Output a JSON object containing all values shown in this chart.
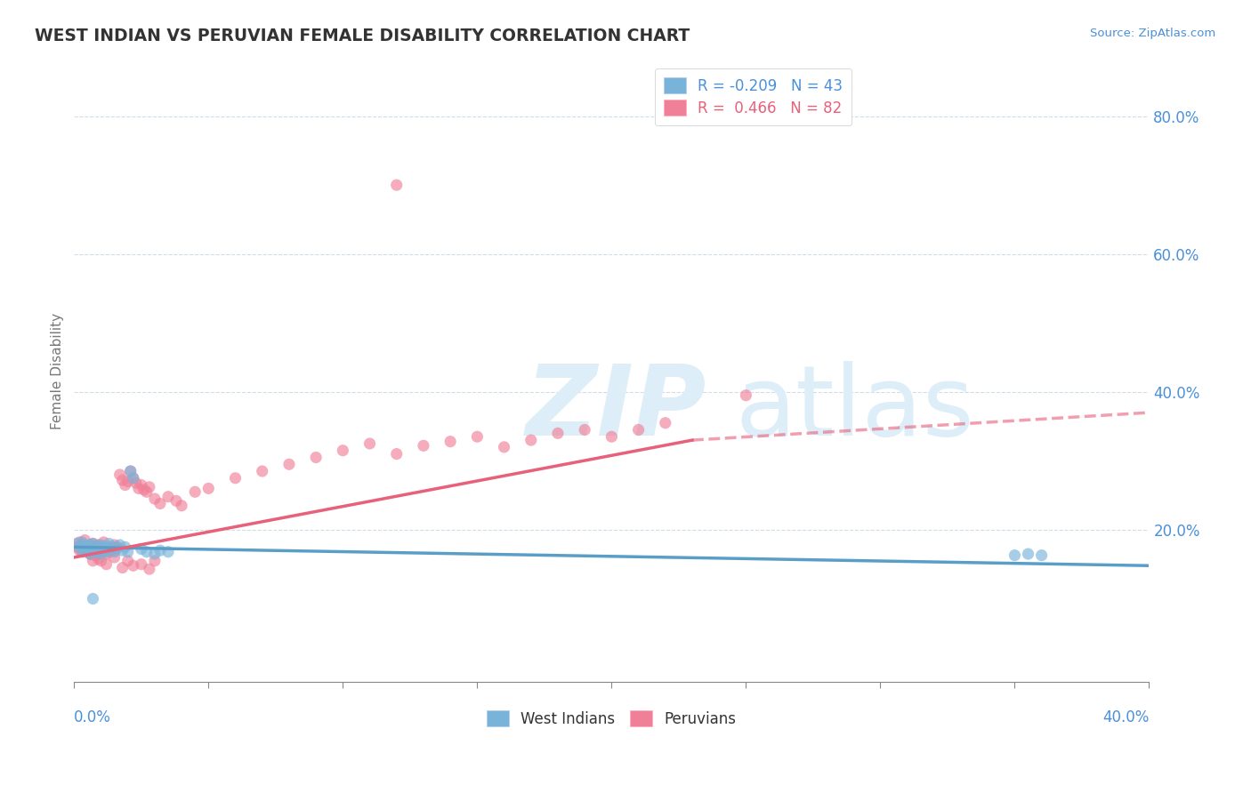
{
  "title": "WEST INDIAN VS PERUVIAN FEMALE DISABILITY CORRELATION CHART",
  "source_text": "Source: ZipAtlas.com",
  "west_indian_color": "#7ab3d9",
  "peruvian_color": "#f08098",
  "trendline_wi_color": "#5a9ec8",
  "trendline_pe_color": "#e8607a",
  "trendline_wi_dashed_color": "#aaaaaa",
  "watermark_color": "#ddeef8",
  "axis_color": "#4a90d9",
  "grid_color": "#d0dce8",
  "bg_color": "#ffffff",
  "text_color": "#333333",
  "ylabel_color": "#777777",
  "xlim": [
    0.0,
    0.4
  ],
  "ylim": [
    -0.02,
    0.88
  ],
  "yticks": [
    0.0,
    0.2,
    0.4,
    0.6,
    0.8
  ],
  "ytick_labels": [
    "",
    "20.0%",
    "40.0%",
    "60.0%",
    "80.0%"
  ],
  "legend_r_wi": "R = -0.209",
  "legend_n_wi": "N = 43",
  "legend_r_pe": "R =  0.466",
  "legend_n_pe": "N = 82",
  "legend_wi_color": "#4a90d9",
  "legend_pe_color": "#e8607a",
  "axis_label": "Female Disability",
  "bottom_label_wi": "West Indians",
  "bottom_label_pe": "Peruvians",
  "wi_x": [
    0.001,
    0.002,
    0.003,
    0.003,
    0.004,
    0.004,
    0.005,
    0.005,
    0.006,
    0.006,
    0.007,
    0.007,
    0.008,
    0.008,
    0.009,
    0.009,
    0.01,
    0.01,
    0.011,
    0.011,
    0.012,
    0.012,
    0.013,
    0.013,
    0.014,
    0.015,
    0.016,
    0.017,
    0.018,
    0.019,
    0.02,
    0.021,
    0.022,
    0.025,
    0.027,
    0.03,
    0.032,
    0.035,
    0.007,
    0.006,
    0.35,
    0.355,
    0.36
  ],
  "wi_y": [
    0.18,
    0.175,
    0.17,
    0.182,
    0.178,
    0.173,
    0.175,
    0.168,
    0.172,
    0.165,
    0.175,
    0.18,
    0.17,
    0.168,
    0.175,
    0.172,
    0.178,
    0.165,
    0.17,
    0.175,
    0.168,
    0.175,
    0.172,
    0.18,
    0.175,
    0.168,
    0.173,
    0.178,
    0.17,
    0.175,
    0.168,
    0.285,
    0.275,
    0.172,
    0.168,
    0.165,
    0.17,
    0.168,
    0.1,
    0.178,
    0.163,
    0.165,
    0.163
  ],
  "pe_x": [
    0.001,
    0.002,
    0.002,
    0.003,
    0.003,
    0.004,
    0.004,
    0.005,
    0.005,
    0.006,
    0.006,
    0.007,
    0.007,
    0.007,
    0.008,
    0.008,
    0.008,
    0.009,
    0.009,
    0.01,
    0.01,
    0.011,
    0.011,
    0.012,
    0.012,
    0.013,
    0.013,
    0.014,
    0.015,
    0.015,
    0.016,
    0.017,
    0.018,
    0.019,
    0.02,
    0.021,
    0.022,
    0.023,
    0.024,
    0.025,
    0.026,
    0.027,
    0.028,
    0.03,
    0.032,
    0.035,
    0.038,
    0.04,
    0.045,
    0.05,
    0.06,
    0.07,
    0.08,
    0.09,
    0.1,
    0.11,
    0.12,
    0.13,
    0.14,
    0.15,
    0.16,
    0.17,
    0.18,
    0.19,
    0.2,
    0.21,
    0.22,
    0.008,
    0.009,
    0.01,
    0.012,
    0.015,
    0.018,
    0.02,
    0.022,
    0.025,
    0.028,
    0.03,
    0.006,
    0.007,
    0.25,
    0.12
  ],
  "pe_y": [
    0.175,
    0.17,
    0.182,
    0.168,
    0.178,
    0.172,
    0.185,
    0.17,
    0.175,
    0.165,
    0.178,
    0.172,
    0.165,
    0.18,
    0.168,
    0.175,
    0.17,
    0.165,
    0.178,
    0.172,
    0.168,
    0.175,
    0.182,
    0.17,
    0.165,
    0.175,
    0.168,
    0.172,
    0.178,
    0.17,
    0.175,
    0.28,
    0.272,
    0.265,
    0.27,
    0.285,
    0.275,
    0.268,
    0.26,
    0.265,
    0.258,
    0.255,
    0.262,
    0.245,
    0.238,
    0.248,
    0.242,
    0.235,
    0.255,
    0.26,
    0.275,
    0.285,
    0.295,
    0.305,
    0.315,
    0.325,
    0.31,
    0.322,
    0.328,
    0.335,
    0.32,
    0.33,
    0.34,
    0.345,
    0.335,
    0.345,
    0.355,
    0.163,
    0.158,
    0.155,
    0.15,
    0.16,
    0.145,
    0.155,
    0.148,
    0.15,
    0.143,
    0.155,
    0.165,
    0.155,
    0.395,
    0.7
  ]
}
